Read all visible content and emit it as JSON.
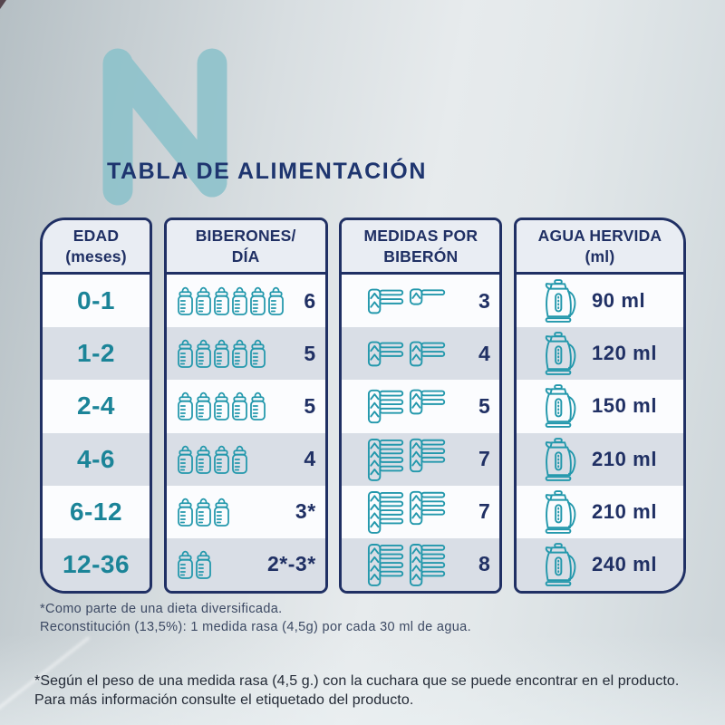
{
  "page": {
    "title": "TABLA DE ALIMENTACIÓN",
    "watermark_letter": "N"
  },
  "colors": {
    "navy": "#203064",
    "teal": "#2398ac",
    "teal_text": "#1b8498",
    "watermark_teal": "#8cc2cb",
    "zebra_row": "#d9dee6",
    "white_row": "#fbfcfe",
    "header_bg": "#e9edf3",
    "title_navy": "#1e356f"
  },
  "icons": {
    "bottle": "baby-bottle-icon",
    "scoop": "measuring-scoop-icon",
    "kettle": "kettle-icon"
  },
  "table": {
    "columns": [
      {
        "id": "edad",
        "header_line1": "EDAD",
        "header_line2": "(meses)"
      },
      {
        "id": "biberones",
        "header_line1": "BIBERONES/",
        "header_line2": "DÍA"
      },
      {
        "id": "medidas",
        "header_line1": "MEDIDAS POR",
        "header_line2": "BIBERÓN"
      },
      {
        "id": "agua",
        "header_line1": "AGUA HERVIDA",
        "header_line2": "(ml)"
      }
    ],
    "rows": [
      {
        "edad": "0-1",
        "biberones_count": 6,
        "biberones_label": "6",
        "medidas_groups": [
          2,
          1
        ],
        "medidas_label": "3",
        "agua": "90 ml"
      },
      {
        "edad": "1-2",
        "biberones_count": 5,
        "biberones_label": "5",
        "medidas_groups": [
          2,
          2
        ],
        "medidas_label": "4",
        "agua": "120 ml"
      },
      {
        "edad": "2-4",
        "biberones_count": 5,
        "biberones_label": "5",
        "medidas_groups": [
          3,
          2
        ],
        "medidas_label": "5",
        "agua": "150 ml"
      },
      {
        "edad": "4-6",
        "biberones_count": 4,
        "biberones_label": "4",
        "medidas_groups": [
          4,
          3
        ],
        "medidas_label": "7",
        "agua": "210 ml"
      },
      {
        "edad": "6-12",
        "biberones_count": 3,
        "biberones_label": "3*",
        "medidas_groups": [
          4,
          3
        ],
        "medidas_label": "7",
        "agua": "210 ml"
      },
      {
        "edad": "12-36",
        "biberones_count": 2,
        "biberones_label": "2*-3*",
        "medidas_groups": [
          4,
          4
        ],
        "medidas_label": "8",
        "agua": "240 ml"
      }
    ]
  },
  "chart_data": {
    "type": "table",
    "title": "TABLA DE ALIMENTACIÓN",
    "columns": [
      "EDAD (meses)",
      "BIBERONES/DÍA",
      "MEDIDAS POR BIBERÓN",
      "AGUA HERVIDA (ml)"
    ],
    "rows": [
      [
        "0-1",
        "6",
        "3",
        "90 ml"
      ],
      [
        "1-2",
        "5",
        "4",
        "120 ml"
      ],
      [
        "2-4",
        "5",
        "5",
        "150 ml"
      ],
      [
        "4-6",
        "4",
        "7",
        "210 ml"
      ],
      [
        "6-12",
        "3*",
        "7",
        "210 ml"
      ],
      [
        "12-36",
        "2*-3*",
        "8",
        "240 ml"
      ]
    ]
  },
  "footnotes": {
    "line1": "*Como parte de una dieta diversificada.",
    "line2": "Reconstitución (13,5%): 1 medida rasa (4,5g) por cada 30 ml de agua."
  },
  "disclaimer": {
    "line1": "*Según el peso de una medida rasa (4,5 g.) con la cuchara que se puede encontrar en el producto.",
    "line2": "Para más información consulte el etiquetado del producto."
  }
}
